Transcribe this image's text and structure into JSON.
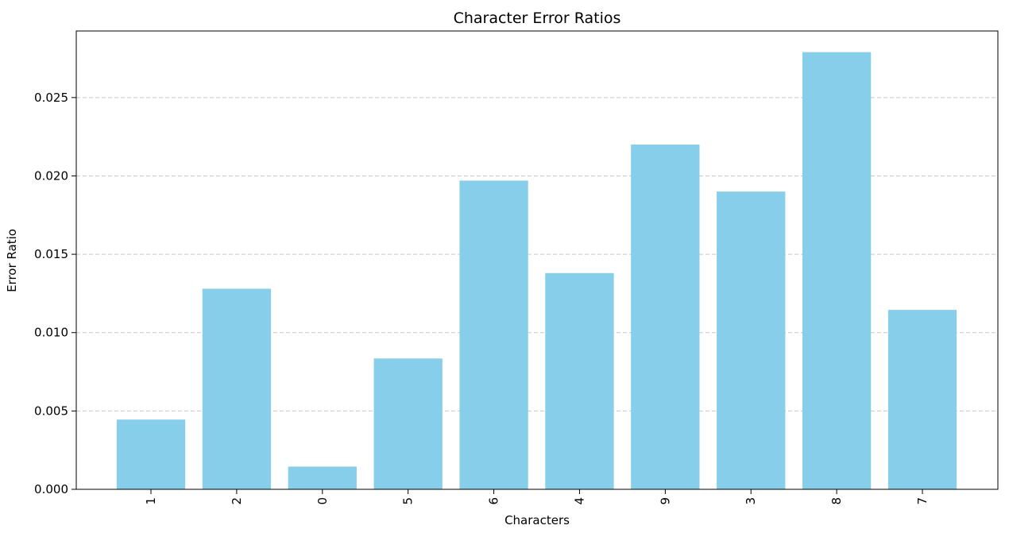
{
  "chart_data": {
    "type": "bar",
    "title": "Character Error Ratios",
    "xlabel": "Characters",
    "ylabel": "Error Ratio",
    "categories": [
      "1",
      "2",
      "0",
      "5",
      "6",
      "4",
      "9",
      "3",
      "8",
      "7"
    ],
    "values": [
      0.00445,
      0.0128,
      0.00145,
      0.00835,
      0.0197,
      0.0138,
      0.022,
      0.019,
      0.0279,
      0.01145
    ],
    "ylim": [
      0,
      0.02925
    ],
    "yticks": [
      "0.000",
      "0.005",
      "0.010",
      "0.015",
      "0.020",
      "0.025"
    ],
    "x_tick_rotation": "vertical",
    "grid": {
      "axis": "y",
      "style": "dashed"
    },
    "legend": "none",
    "colors": {
      "bar": "#87CEEB",
      "grid": "#c8c8c8",
      "axis": "#000000",
      "background": "#ffffff"
    }
  }
}
